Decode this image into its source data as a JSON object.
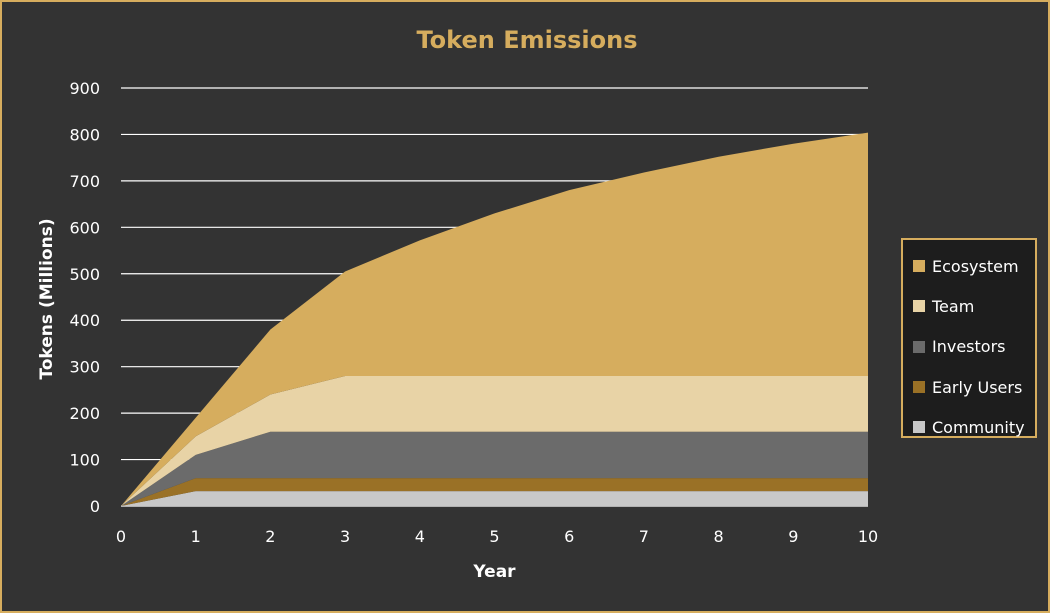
{
  "chart_data": {
    "type": "area",
    "stacked": true,
    "title": "Token Emissions",
    "xlabel": "Year",
    "ylabel": "Tokens (Millions)",
    "x": [
      0,
      1,
      2,
      3,
      4,
      5,
      6,
      7,
      8,
      9,
      10
    ],
    "xlim": [
      0,
      10
    ],
    "ylim": [
      0,
      900
    ],
    "yticks": [
      0,
      100,
      200,
      300,
      400,
      500,
      600,
      700,
      800,
      900
    ],
    "grid": "horizontal",
    "legend_position": "right",
    "series": [
      {
        "name": "Community",
        "color": "#c8c8c8",
        "values": [
          0,
          32,
          32,
          32,
          32,
          32,
          32,
          32,
          32,
          32,
          32
        ]
      },
      {
        "name": "Early Users",
        "color": "#9a7126",
        "values": [
          0,
          28,
          28,
          28,
          28,
          28,
          28,
          28,
          28,
          28,
          28
        ]
      },
      {
        "name": "Investors",
        "color": "#6b6b6b",
        "values": [
          0,
          50,
          100,
          100,
          100,
          100,
          100,
          100,
          100,
          100,
          100
        ]
      },
      {
        "name": "Team",
        "color": "#e8d3a6",
        "values": [
          0,
          40,
          80,
          120,
          120,
          120,
          120,
          120,
          120,
          120,
          120
        ]
      },
      {
        "name": "Ecosystem",
        "color": "#d6ad5e",
        "values": [
          0,
          40,
          140,
          225,
          292,
          350,
          400,
          438,
          472,
          500,
          524
        ]
      }
    ]
  }
}
